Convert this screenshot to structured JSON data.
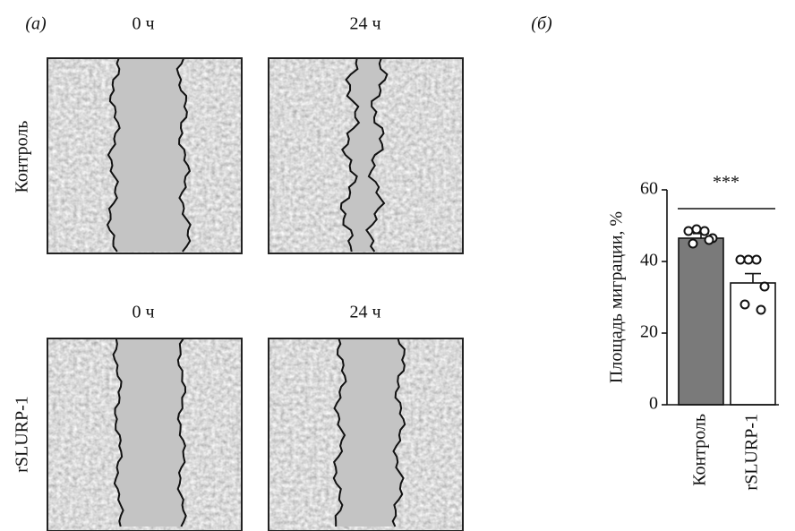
{
  "panel_a": {
    "label": "(а)",
    "rows": [
      {
        "name": "Контроль",
        "times": [
          "0 ч",
          "24 ч"
        ]
      },
      {
        "name": "rSLURP-1",
        "times": [
          "0 ч",
          "24 ч"
        ]
      }
    ]
  },
  "chart_data": {
    "type": "bar",
    "panel_label": "(б)",
    "y_label": "Площадь миграции, %",
    "categories": [
      "Контроль",
      "rSLURP-1"
    ],
    "values": [
      46.5,
      34
    ],
    "errors": [
      1.3,
      2.6
    ],
    "points": [
      [
        48.5,
        49,
        48.5,
        46.5,
        45,
        46
      ],
      [
        40.5,
        40.5,
        40.5,
        33,
        28,
        26.5
      ]
    ],
    "colors": [
      "#7a7a7a",
      "#ffffff"
    ],
    "significance": "***",
    "ylim": [
      0,
      60
    ],
    "yticks": [
      0,
      20,
      40,
      60
    ]
  }
}
